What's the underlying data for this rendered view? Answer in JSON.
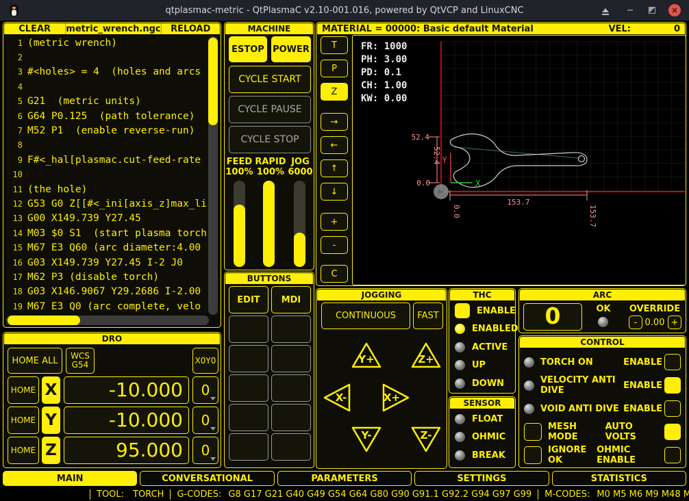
{
  "window": {
    "title": "qtplasmac-metric - QtPlasmaC v2.10-001.016, powered by QtVCP and LinuxCNC"
  },
  "colors": {
    "accent": "#ffee06",
    "close_red": "#e0564f",
    "dim_pink": "#ff9494",
    "limit_red": "#ff1212",
    "axis_green": "#2ecc2e",
    "axis_red": "#ff4545",
    "led_on": "#ffee06",
    "led_off": "#8a8a8a"
  },
  "file_panel": {
    "clear": "CLEAR",
    "filename": "metric_wrench.ngc",
    "reload": "RELOAD",
    "gcode_lines": [
      {
        "n": "1",
        "text": "(metric wrench)"
      },
      {
        "n": "2",
        "text": ""
      },
      {
        "n": "3",
        "text": "#<holes> = 4  (holes and arcs"
      },
      {
        "n": "4",
        "text": ""
      },
      {
        "n": "5",
        "text": "G21  (metric units)"
      },
      {
        "n": "6",
        "text": "G64 P0.125  (path tolerance)"
      },
      {
        "n": "7",
        "text": "M52 P1  (enable reverse-run)"
      },
      {
        "n": "8",
        "text": ""
      },
      {
        "n": "9",
        "text": "F#<_hal[plasmac.cut-feed-rate"
      },
      {
        "n": "10",
        "text": ""
      },
      {
        "n": "11",
        "text": "(the hole)"
      },
      {
        "n": "12",
        "text": "G53 G0 Z[[#<_ini[axis_z]max_li"
      },
      {
        "n": "13",
        "text": "G00 X149.739 Y27.45"
      },
      {
        "n": "14",
        "text": "M03 $0 S1  (start plasma torch"
      },
      {
        "n": "15",
        "text": "M67 E3 Q60 (arc diameter:4.00"
      },
      {
        "n": "16",
        "text": "G03 X149.739 Y27.45 I-2 J0"
      },
      {
        "n": "17",
        "text": "M62 P3 (disable torch)"
      },
      {
        "n": "18",
        "text": "G03 X146.9067 Y29.2686 I-2.00"
      },
      {
        "n": "19",
        "text": "M67 E3 Q0 (arc complete, velo"
      }
    ]
  },
  "machine": {
    "title": "MACHINE",
    "estop": "ESTOP",
    "power": "POWER",
    "cycle_start": "CYCLE START",
    "cycle_pause": "CYCLE PAUSE",
    "cycle_stop": "CYCLE STOP",
    "sliders": [
      {
        "label": "FEED",
        "value": "100%",
        "fill_pct": 72
      },
      {
        "label": "RAPID",
        "value": "100%",
        "fill_pct": 100
      },
      {
        "label": "JOG",
        "value": "6000",
        "fill_pct": 40
      }
    ]
  },
  "buttons_panel": {
    "title": "BUTTONS",
    "buttons": [
      "EDIT",
      "MDI"
    ],
    "empty_slots": 10
  },
  "preview": {
    "material_text": "MATERIAL =  00000: Basic default Material",
    "vel_label": "VEL:",
    "vel_value": "0",
    "controls": {
      "groups": [
        [
          "T",
          "P",
          "Z"
        ],
        [
          "→",
          "←",
          "↑",
          "↓"
        ],
        [
          "+",
          "-"
        ],
        [
          "C"
        ]
      ],
      "active": "Z"
    },
    "overlay_lines": [
      "FR: 1000",
      "PH: 3.00",
      "PD: 0.1",
      "CH: 1.00",
      "KW: 0.00"
    ],
    "dimensions": {
      "height": "52.4",
      "width": "153.7",
      "zero": "0.0"
    },
    "axis_labels": {
      "x": "X",
      "y": "Y"
    }
  },
  "dro": {
    "title": "DRO",
    "home_all": "HOME ALL",
    "wcs_line1": "WCS",
    "wcs_line2": "G54",
    "zero_xy": "X0Y0",
    "home": "HOME",
    "axes": [
      {
        "letter": "X",
        "value": "-10.000",
        "select": "0"
      },
      {
        "letter": "Y",
        "value": "-10.000",
        "select": "0"
      },
      {
        "letter": "Z",
        "value": "95.000",
        "select": "0"
      }
    ]
  },
  "jogging": {
    "title": "JOGGING",
    "continuous": "CONTINUOUS",
    "fast": "FAST",
    "pads": [
      {
        "dir": "up",
        "label": "Y+"
      },
      {
        "dir": "up",
        "label": "Z+"
      },
      {
        "dir": "left",
        "label": "X-"
      },
      {
        "dir": "right",
        "label": "X+"
      },
      {
        "dir": "down",
        "label": "Y-"
      },
      {
        "dir": "down",
        "label": "Z-"
      }
    ]
  },
  "thc": {
    "title": "THC",
    "items": [
      {
        "kind": "checkbox",
        "label": "ENABLE",
        "on": true
      },
      {
        "kind": "led",
        "label": "ENABLED",
        "on": true
      },
      {
        "kind": "led",
        "label": "ACTIVE",
        "on": false
      },
      {
        "kind": "led",
        "label": "UP",
        "on": false
      },
      {
        "kind": "led",
        "label": "DOWN",
        "on": false
      }
    ]
  },
  "sensor": {
    "title": "SENSOR",
    "items": [
      {
        "kind": "led",
        "label": "FLOAT",
        "on": false
      },
      {
        "kind": "led",
        "label": "OHMIC",
        "on": false
      },
      {
        "kind": "led",
        "label": "BREAK",
        "on": false
      }
    ]
  },
  "arc": {
    "title": "ARC",
    "value": "0",
    "ok_label": "OK",
    "override_label": "OVERRIDE",
    "minus": "-",
    "override_value": "0.00",
    "plus": "+"
  },
  "control": {
    "title": "CONTROL",
    "rows": [
      {
        "left": "led",
        "left_on": false,
        "label": "TORCH ON",
        "right_label": "ENABLE",
        "right_on": false
      },
      {
        "left": "led",
        "left_on": false,
        "label": "VELOCITY ANTI DIVE",
        "right_label": "ENABLE",
        "right_on": true
      },
      {
        "left": "led",
        "left_on": false,
        "label": "VOID ANTI DIVE",
        "right_label": "ENABLE",
        "right_on": false
      },
      {
        "left": "checkbox",
        "left_on": false,
        "label": "MESH MODE",
        "right_label": "AUTO VOLTS",
        "right_on": true
      },
      {
        "left": "checkbox",
        "left_on": false,
        "label": "IGNORE OK",
        "right_label": "OHMIC ENABLE",
        "right_on": false
      }
    ]
  },
  "tabs": {
    "items": [
      "MAIN",
      "CONVERSATIONAL",
      "PARAMETERS",
      "SETTINGS",
      "STATISTICS"
    ],
    "active": "MAIN"
  },
  "status": {
    "tool_label": "TOOL:",
    "tool_value": "TORCH",
    "gcodes_label": "G-CODES:",
    "gcodes": "G8 G17 G21 G40 G49 G54 G64 G80 G90 G91.1 G92.2 G94 G97 G99",
    "mcodes_label": "M-CODES:",
    "mcodes": "M0 M5 M6 M9 M48 M52 M53"
  }
}
